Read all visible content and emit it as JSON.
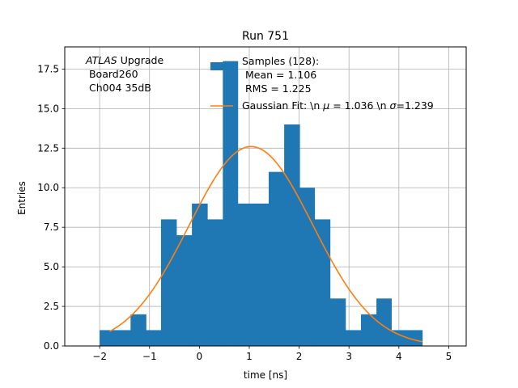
{
  "chart_data": {
    "type": "bar",
    "title": "Run 751",
    "xlabel": "time [ns]",
    "ylabel": "Entries",
    "xlim": [
      -2.7,
      5.35
    ],
    "ylim": [
      0,
      18.9
    ],
    "grid": true,
    "xticks": [
      -2,
      -1,
      0,
      1,
      2,
      3,
      4,
      5
    ],
    "xtick_labels": [
      "−2",
      "−1",
      "0",
      "1",
      "2",
      "3",
      "4",
      "5"
    ],
    "yticks": [
      0,
      2.5,
      5,
      7.5,
      10,
      12.5,
      15,
      17.5
    ],
    "ytick_labels": [
      "0.0",
      "2.5",
      "5.0",
      "7.5",
      "10.0",
      "12.5",
      "15.0",
      "17.5"
    ],
    "histogram": {
      "bin_edges": [
        -2.0,
        -1.69,
        -1.38,
        -1.07,
        -0.77,
        -0.46,
        -0.15,
        0.16,
        0.47,
        0.77,
        1.08,
        1.39,
        1.7,
        2.01,
        2.31,
        2.62,
        2.93,
        3.24,
        3.55,
        3.85,
        4.16,
        4.47
      ],
      "counts": [
        1,
        1,
        2,
        1,
        8,
        7,
        9,
        8,
        18,
        9,
        9,
        11,
        14,
        10,
        8,
        3,
        1,
        2,
        3,
        1,
        1
      ],
      "color": "#1f77b4"
    },
    "series": [
      {
        "name": "Gaussian Fit: \\n $\\mu$ = 1.036 \\n $\\sigma$=1.239",
        "type": "line",
        "color": "#ff7f0e",
        "mu": 1.036,
        "sigma": 1.239,
        "amplitude": 12.6,
        "x_range": [
          -1.8,
          4.47
        ]
      }
    ],
    "legend": {
      "placement": "top-right",
      "entries": [
        {
          "kind": "patch",
          "color": "#1f77b4",
          "lines": [
            "Samples (128):",
            " Mean = 1.106",
            " RMS = 1.225"
          ]
        },
        {
          "kind": "line",
          "color": "#ff7f0e",
          "prefix": "Gaussian Fit: \\n ",
          "mu_label": "μ",
          "mu_value": " = 1.036 \\n ",
          "sigma_label": "σ",
          "sigma_value": "=1.239"
        }
      ]
    },
    "annotation": {
      "italic": "ATLAS",
      "rest": " Upgrade",
      "lines": [
        " Board260",
        " Ch004 35dB"
      ]
    }
  }
}
